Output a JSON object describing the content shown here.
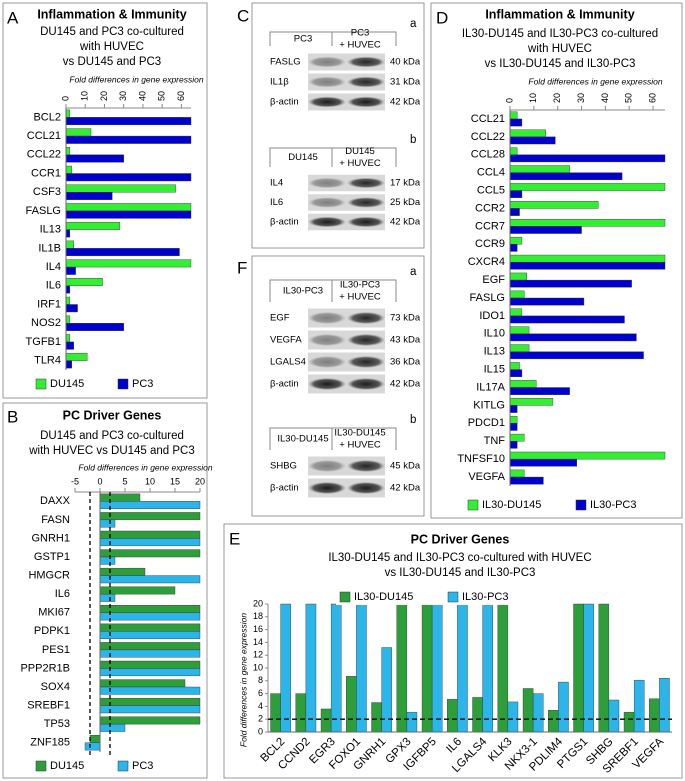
{
  "chart_data": [
    {
      "type": "barh",
      "panel": "A",
      "title": "Inflammation & Immunity",
      "subtitle": [
        "DU145 and PC3 co-cultured",
        "with HUVEC",
        "vs DU145 and PC3"
      ],
      "x_label": "Fold differences in gene expression",
      "categories": [
        "BCL2",
        "CCL21",
        "CCL22",
        "CCR1",
        "CSF3",
        "FASLG",
        "IL13",
        "IL1B",
        "IL4",
        "IL6",
        "IRF1",
        "NOS2",
        "TGFB1",
        "TLR4"
      ],
      "series": [
        {
          "name": "DU145",
          "color": "#33ee33",
          "values": [
            2,
            13,
            2,
            3,
            57,
            65,
            28,
            4,
            65,
            19,
            2,
            2,
            2,
            11
          ]
        },
        {
          "name": "PC3",
          "color": "#0000cc",
          "values": [
            65,
            65,
            30,
            65,
            24,
            65,
            2,
            59,
            5,
            2,
            6,
            30,
            4,
            3
          ]
        }
      ],
      "xlim": [
        0,
        65
      ],
      "xticks": [
        0,
        10,
        20,
        30,
        40,
        50,
        60
      ],
      "legend": "bottom"
    },
    {
      "type": "barh",
      "panel": "B",
      "title": "PC Driver Genes",
      "subtitle": [
        "DU145 and PC3 co-cultured",
        "with HUVEC vs DU145 and PC3"
      ],
      "x_label": "Fold differences in gene expression",
      "categories": [
        "DAXX",
        "FASN",
        "GNRH1",
        "GSTP1",
        "HMGCR",
        "IL6",
        "MKI67",
        "PDPK1",
        "PES1",
        "PPP2R1B",
        "SOX4",
        "SREBF1",
        "TP53",
        "ZNF185"
      ],
      "series": [
        {
          "name": "DU145",
          "color": "#2e9e3a",
          "values": [
            8,
            20,
            20,
            20,
            9,
            15,
            20,
            20,
            20,
            20,
            17,
            20,
            20,
            -2
          ]
        },
        {
          "name": "PC3",
          "color": "#2bb5e8",
          "values": [
            20,
            3,
            20,
            3,
            20,
            3,
            20,
            20,
            20,
            20,
            20,
            20,
            5,
            -3
          ]
        }
      ],
      "xlim": [
        -5,
        20
      ],
      "xticks": [
        -5,
        0,
        5,
        10,
        15,
        20
      ],
      "reference_lines": [
        -2,
        2
      ],
      "legend": "bottom"
    },
    {
      "type": "barh",
      "panel": "D",
      "title": "Inflammation & Immunity",
      "subtitle": [
        "IL30-DU145 and IL30-PC3 co-cultured",
        "with HUVEC",
        "vs IL30-DU145 and IL30-PC3"
      ],
      "x_label": "Fold differences in gene expression",
      "categories": [
        "CCL21",
        "CCL22",
        "CCL28",
        "CCL4",
        "CCL5",
        "CCR2",
        "CCR7",
        "CCR9",
        "CXCR4",
        "EGF",
        "FASLG",
        "IDO1",
        "IL10",
        "IL13",
        "IL15",
        "IL17A",
        "KITLG",
        "PDCD1",
        "TNF",
        "TNFSF10",
        "VEGFA"
      ],
      "series": [
        {
          "name": "IL30-DU145",
          "color": "#33ee33",
          "values": [
            3,
            15,
            3,
            25,
            65,
            37,
            65,
            5,
            65,
            7,
            6,
            5,
            8,
            8,
            4,
            11,
            18,
            3,
            6,
            65,
            6
          ]
        },
        {
          "name": "IL30-PC3",
          "color": "#0000cc",
          "values": [
            5,
            19,
            65,
            47,
            5,
            4,
            30,
            3,
            65,
            51,
            31,
            48,
            53,
            56,
            5,
            25,
            3,
            3,
            3,
            28,
            14
          ]
        }
      ],
      "xlim": [
        0,
        65
      ],
      "xticks": [
        0,
        10,
        20,
        30,
        40,
        50,
        60
      ],
      "legend": "bottom"
    },
    {
      "type": "bar",
      "panel": "E",
      "title": "PC Driver Genes",
      "subtitle": [
        "IL30-DU145 and IL30-PC3 co-cultured with HUVEC",
        "vs IL30-DU145 and IL30-PC3"
      ],
      "y_label": "Fold differences in gene expression",
      "categories": [
        "BCL2",
        "CCND2",
        "EGR3",
        "FOXO1",
        "GNRH1",
        "GPX3",
        "IGFBP5",
        "IL6",
        "LGALS4",
        "KLK3",
        "NKX3-1",
        "PDLIM4",
        "PTGS1",
        "SHBG",
        "SREBF1",
        "VEGFA"
      ],
      "series": [
        {
          "name": "IL30-DU145",
          "color": "#2e9e3a",
          "values": [
            6,
            6,
            3.6,
            8.7,
            4.6,
            20,
            20,
            5.1,
            5.4,
            20,
            6.8,
            3.4,
            20,
            20,
            3.1,
            5.2
          ]
        },
        {
          "name": "IL30-PC3",
          "color": "#2bb5e8",
          "values": [
            20,
            20,
            20,
            20,
            13.2,
            3.1,
            20,
            20,
            20,
            4.7,
            6,
            7.8,
            20,
            5,
            8.1,
            8.4
          ]
        }
      ],
      "ylim": [
        0,
        20
      ],
      "yticks": [
        0,
        2,
        4,
        6,
        8,
        10,
        12,
        14,
        16,
        18,
        20
      ],
      "reference_lines": [
        2
      ],
      "legend": "top"
    }
  ],
  "blots": [
    {
      "panel": "C",
      "parts": [
        {
          "label": "a",
          "lanes": [
            [
              "PC3"
            ],
            [
              "PC3",
              "+ HUVEC"
            ]
          ],
          "rows": [
            {
              "protein": "FASLG",
              "size": "40 kDa"
            },
            {
              "protein": "IL1β",
              "size": "31 kDa"
            },
            {
              "protein": "β-actin",
              "size": "42 kDa"
            }
          ]
        },
        {
          "label": "b",
          "lanes": [
            [
              "DU145"
            ],
            [
              "DU145",
              "+ HUVEC"
            ]
          ],
          "rows": [
            {
              "protein": "IL4",
              "size": "17 kDa"
            },
            {
              "protein": "IL6",
              "size": "25 kDa"
            },
            {
              "protein": "β-actin",
              "size": "42 kDa"
            }
          ]
        }
      ]
    },
    {
      "panel": "F",
      "parts": [
        {
          "label": "a",
          "lanes": [
            [
              "IL30-PC3"
            ],
            [
              "IL30-PC3",
              "+ HUVEC"
            ]
          ],
          "rows": [
            {
              "protein": "EGF",
              "size": "73 kDa"
            },
            {
              "protein": "VEGFA",
              "size": "43 kDa"
            },
            {
              "protein": "LGALS4",
              "size": "36 kDa"
            },
            {
              "protein": "β-actin",
              "size": "42 kDa"
            }
          ]
        },
        {
          "label": "b",
          "lanes": [
            [
              "IL30-DU145"
            ],
            [
              "IL30-DU145",
              "+ HUVEC"
            ]
          ],
          "rows": [
            {
              "protein": "SHBG",
              "size": "45 kDa"
            },
            {
              "protein": "β-actin",
              "size": "42 kDa"
            }
          ]
        }
      ]
    }
  ]
}
